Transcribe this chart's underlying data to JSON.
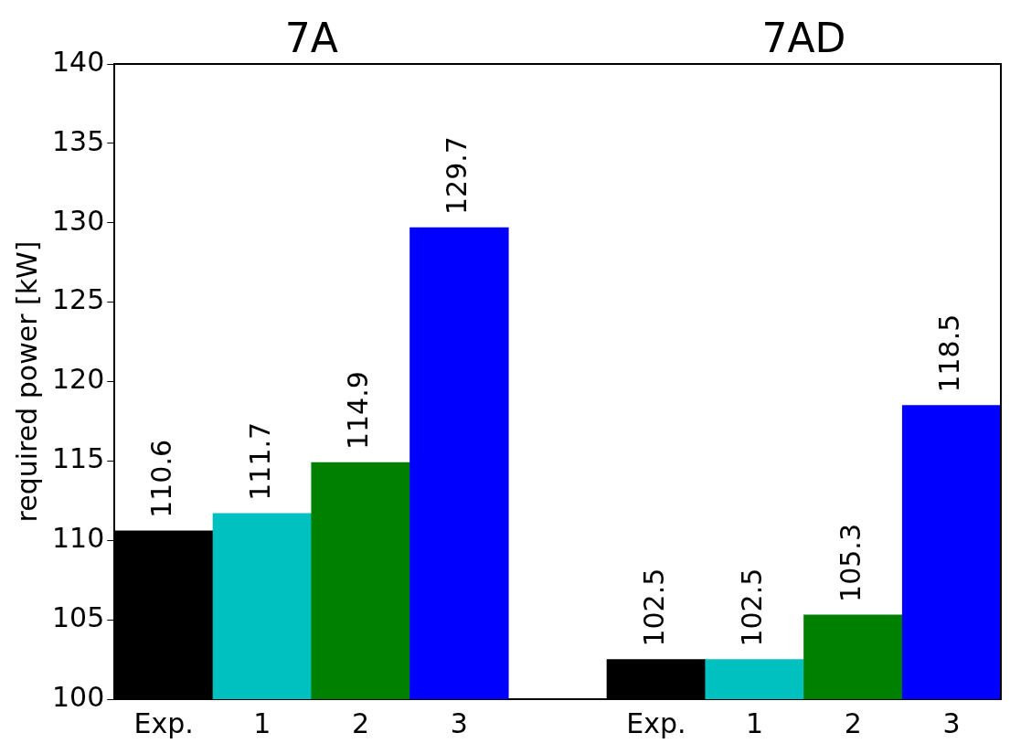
{
  "chart_data": {
    "type": "bar",
    "ylabel": "required power [kW]",
    "categories": [
      "Exp.",
      "1",
      "2",
      "3",
      null,
      "Exp.",
      "1",
      "2",
      "3"
    ],
    "values": [
      110.6,
      111.7,
      114.9,
      129.7,
      null,
      102.5,
      102.5,
      105.3,
      118.5
    ],
    "colors": [
      "#000000",
      "#00c0c0",
      "#008000",
      "#0000ff",
      null,
      "#000000",
      "#00c0c0",
      "#008000",
      "#0000ff"
    ],
    "ylim": [
      100,
      140
    ],
    "yticks": [
      100,
      105,
      110,
      115,
      120,
      125,
      130,
      135,
      140
    ],
    "grid": false,
    "legend": false,
    "data_labels": true,
    "annotations": [
      "7A",
      "7AD"
    ]
  }
}
